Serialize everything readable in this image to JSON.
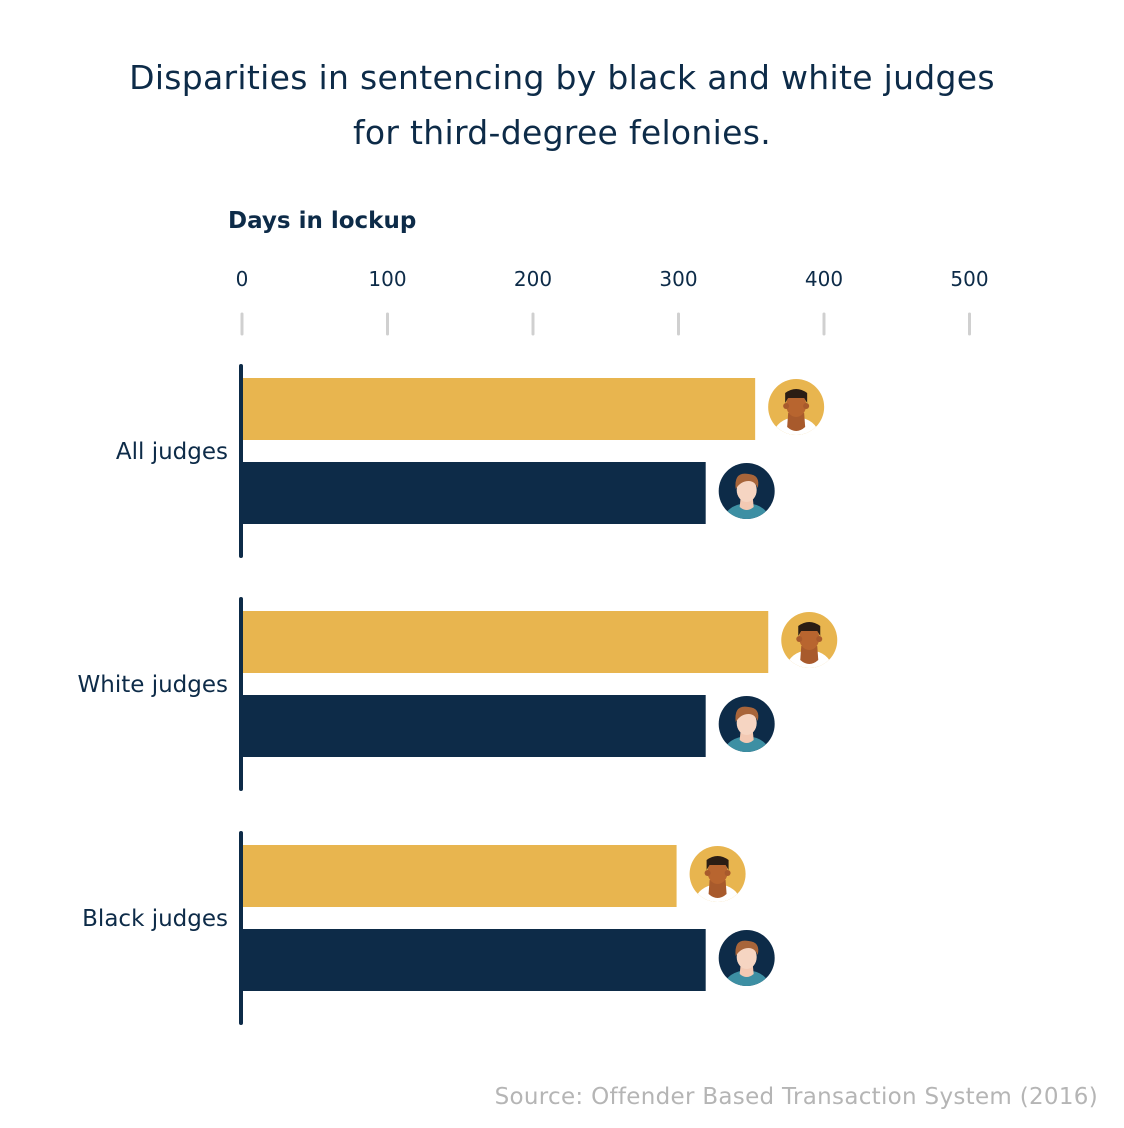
{
  "colors": {
    "sentences_for_black_defendants": "#e8b54f",
    "sentences_for_white_defendants": "#0d2b48",
    "tick_mark": "#d0d0d0",
    "source_text": "#b5b5b5"
  },
  "icons": {
    "black_defendant": "black-defendant-avatar-icon",
    "white_defendant": "white-defendant-avatar-icon"
  },
  "chart_data": {
    "type": "bar",
    "orientation": "horizontal",
    "title": "Disparities in sentencing by black and white judges for third-degree felonies.",
    "title_lines": [
      "Disparities in sentencing by black and white judges",
      "for third-degree felonies."
    ],
    "xlabel": "Days in lockup",
    "ylabel": "",
    "xlim": [
      0,
      500
    ],
    "ticks": [
      0,
      100,
      200,
      300,
      400,
      500
    ],
    "grid": false,
    "legend": "none",
    "categories": [
      "All judges",
      "White judges",
      "Black judges"
    ],
    "series": [
      {
        "values": [
          352,
          361,
          298
        ],
        "icon": "black-defendant-avatar-icon"
      },
      {
        "values": [
          318,
          318,
          318
        ],
        "icon": "white-defendant-avatar-icon"
      }
    ],
    "source": "Source: Offender Based Transaction System (2016)"
  }
}
